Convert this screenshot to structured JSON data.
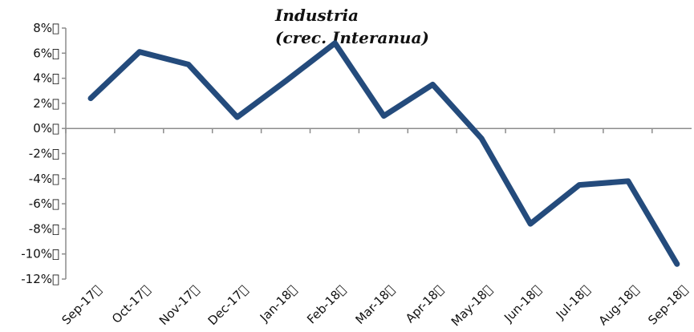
{
  "chart_data": {
    "type": "line",
    "title": "Industria",
    "subtitle": "(crec. Interanua)",
    "categories": [
      "Sep-17",
      "Oct-17",
      "Nov-17",
      "Dec-17",
      "Jan-18",
      "Feb-18",
      "Mar-18",
      "Apr-18",
      "May-18",
      "Jun-18",
      "Jul-18",
      "Aug-18",
      "Sep-18"
    ],
    "category_labels": [
      "Sep-17\u0000",
      "Oct-17\u0000",
      "Nov-17\u0000",
      "Dec-17\u0000",
      "Jan-18\u0000",
      "Feb-18\u0000",
      "Mar-18\u0000",
      "Apr-18\u0000",
      "May-18\u0000",
      "Jun-18\u0000",
      "Jul-18\u0000",
      "Aug-18\u0000",
      "Sep-18\u0000"
    ],
    "series": [
      {
        "values": [
          2.4,
          6.1,
          5.1,
          0.9,
          3.8,
          6.8,
          1.0,
          3.5,
          -0.8,
          -7.6,
          -4.5,
          -4.2,
          -10.8
        ]
      }
    ],
    "yticks": [
      8,
      6,
      4,
      2,
      0,
      -2,
      -4,
      -6,
      -8,
      -10,
      -12
    ],
    "ytick_labels": [
      "8%\u0000",
      "6%\u0000",
      "4%\u0000",
      "2%\u0000",
      "0%\u0000",
      "-2%\u0000",
      "-4%\u0000",
      "-6%\u0000",
      "-8%\u0000",
      "-10%\u0000",
      "-12%\u0000"
    ],
    "ylim": [
      -12,
      8
    ],
    "grid": false,
    "legend": "none",
    "colors": {
      "series": "#244b7c",
      "axis": "#8c8c8c"
    }
  }
}
